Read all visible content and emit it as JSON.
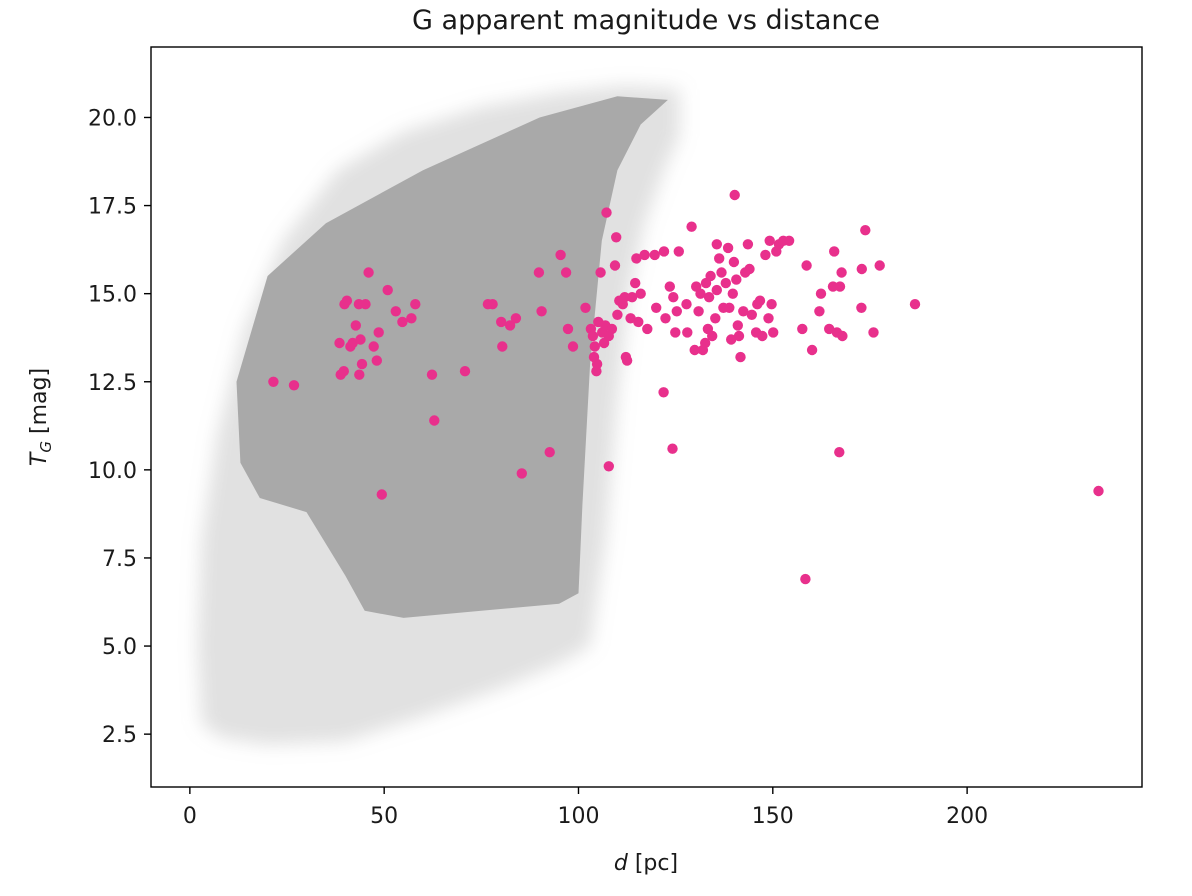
{
  "chart_data": {
    "type": "scatter",
    "title": "G apparent magnitude vs distance",
    "xlabel": {
      "main": "d",
      "unit": " [pc]"
    },
    "ylabel": {
      "main": "T",
      "sub": "G",
      "unit": " [mag]"
    },
    "xlim": [
      -10,
      245
    ],
    "ylim": [
      1.0,
      22.0
    ],
    "xticks": [
      0,
      50,
      100,
      150,
      200
    ],
    "xtick_labels": [
      "0",
      "50",
      "100",
      "150",
      "200"
    ],
    "yticks": [
      2.5,
      5.0,
      7.5,
      10.0,
      12.5,
      15.0,
      17.5,
      20.0
    ],
    "ytick_labels": [
      "2.5",
      "5.0",
      "7.5",
      "10.0",
      "12.5",
      "15.0",
      "17.5",
      "20.0"
    ],
    "grid": false,
    "colors": {
      "background_cloud": "#a9a9a9",
      "highlight": "#e8308c"
    },
    "series": [
      {
        "style": "dense translucent grey background population (bounded region)",
        "outline": [
          [
            3,
            2.8
          ],
          [
            8,
            2.4
          ],
          [
            20,
            2.2
          ],
          [
            40,
            2.3
          ],
          [
            60,
            3.0
          ],
          [
            80,
            3.8
          ],
          [
            95,
            4.5
          ],
          [
            103,
            5.0
          ],
          [
            107,
            8.0
          ],
          [
            110,
            12.0
          ],
          [
            113,
            15.0
          ],
          [
            117,
            17.0
          ],
          [
            122,
            18.5
          ],
          [
            126,
            19.5
          ],
          [
            126,
            20.8
          ],
          [
            112,
            20.9
          ],
          [
            95,
            20.7
          ],
          [
            75,
            20.3
          ],
          [
            55,
            19.6
          ],
          [
            38,
            18.5
          ],
          [
            24,
            16.5
          ],
          [
            14,
            14.0
          ],
          [
            7,
            11.0
          ],
          [
            3,
            8.0
          ],
          [
            2,
            5.0
          ]
        ],
        "core_outline": [
          [
            12,
            12.5
          ],
          [
            13,
            10.2
          ],
          [
            18,
            9.2
          ],
          [
            30,
            8.8
          ],
          [
            40,
            7.0
          ],
          [
            45,
            6.0
          ],
          [
            55,
            5.8
          ],
          [
            75,
            6.0
          ],
          [
            95,
            6.2
          ],
          [
            100,
            6.5
          ],
          [
            101,
            9.0
          ],
          [
            103,
            13.0
          ],
          [
            106,
            16.5
          ],
          [
            110,
            18.5
          ],
          [
            116,
            19.8
          ],
          [
            123,
            20.5
          ],
          [
            110,
            20.6
          ],
          [
            90,
            20.0
          ],
          [
            60,
            18.5
          ],
          [
            35,
            17.0
          ],
          [
            20,
            15.5
          ]
        ]
      },
      {
        "style": "highlighted magenta points",
        "points": [
          [
            21.5,
            12.5
          ],
          [
            26.8,
            12.4
          ],
          [
            38.5,
            13.6
          ],
          [
            38.8,
            12.7
          ],
          [
            39.6,
            12.8
          ],
          [
            39.8,
            14.7
          ],
          [
            40.4,
            14.8
          ],
          [
            41.3,
            13.5
          ],
          [
            41.9,
            13.6
          ],
          [
            42.7,
            14.1
          ],
          [
            43.5,
            14.7
          ],
          [
            43.9,
            13.7
          ],
          [
            43.6,
            12.7
          ],
          [
            44.3,
            13.0
          ],
          [
            45.2,
            14.7
          ],
          [
            46.0,
            15.6
          ],
          [
            47.3,
            13.5
          ],
          [
            48.1,
            13.1
          ],
          [
            48.6,
            13.9
          ],
          [
            49.4,
            9.3
          ],
          [
            50.9,
            15.1
          ],
          [
            53.0,
            14.5
          ],
          [
            54.7,
            14.2
          ],
          [
            57.0,
            14.3
          ],
          [
            58.0,
            14.7
          ],
          [
            62.3,
            12.7
          ],
          [
            62.9,
            11.4
          ],
          [
            70.8,
            12.8
          ],
          [
            76.7,
            14.7
          ],
          [
            77.9,
            14.7
          ],
          [
            80.1,
            14.2
          ],
          [
            80.4,
            13.5
          ],
          [
            82.4,
            14.1
          ],
          [
            83.9,
            14.3
          ],
          [
            85.4,
            9.9
          ],
          [
            89.8,
            15.6
          ],
          [
            90.5,
            14.5
          ],
          [
            92.6,
            10.5
          ],
          [
            95.4,
            16.1
          ],
          [
            96.8,
            15.6
          ],
          [
            97.3,
            14.0
          ],
          [
            98.6,
            13.5
          ],
          [
            101.8,
            14.6
          ],
          [
            103.2,
            14.0
          ],
          [
            103.7,
            13.8
          ],
          [
            104.0,
            13.2
          ],
          [
            104.2,
            13.5
          ],
          [
            104.6,
            12.8
          ],
          [
            104.8,
            13.0
          ],
          [
            105.1,
            14.2
          ],
          [
            105.7,
            15.6
          ],
          [
            106.1,
            13.9
          ],
          [
            106.6,
            13.6
          ],
          [
            106.9,
            14.1
          ],
          [
            107.2,
            17.3
          ],
          [
            107.8,
            13.8
          ],
          [
            107.8,
            10.1
          ],
          [
            108.6,
            14.0
          ],
          [
            109.4,
            15.8
          ],
          [
            109.7,
            16.6
          ],
          [
            110.0,
            14.4
          ],
          [
            110.5,
            14.8
          ],
          [
            111.4,
            14.7
          ],
          [
            111.9,
            14.9
          ],
          [
            112.2,
            13.2
          ],
          [
            112.5,
            13.1
          ],
          [
            113.4,
            14.3
          ],
          [
            113.8,
            14.9
          ],
          [
            114.6,
            15.3
          ],
          [
            114.9,
            16.0
          ],
          [
            115.4,
            14.2
          ],
          [
            116.0,
            15.0
          ],
          [
            117.0,
            16.1
          ],
          [
            117.7,
            14.0
          ],
          [
            119.6,
            16.1
          ],
          [
            120.0,
            14.6
          ],
          [
            121.9,
            12.2
          ],
          [
            122.0,
            16.2
          ],
          [
            122.4,
            14.3
          ],
          [
            123.5,
            15.2
          ],
          [
            124.2,
            10.6
          ],
          [
            124.4,
            14.9
          ],
          [
            124.9,
            13.9
          ],
          [
            125.3,
            14.5
          ],
          [
            125.8,
            16.2
          ],
          [
            127.8,
            14.7
          ],
          [
            128.0,
            13.9
          ],
          [
            129.1,
            16.9
          ],
          [
            129.9,
            13.4
          ],
          [
            130.3,
            15.2
          ],
          [
            130.9,
            14.5
          ],
          [
            131.4,
            15.0
          ],
          [
            132.0,
            13.4
          ],
          [
            132.6,
            13.6
          ],
          [
            132.8,
            15.3
          ],
          [
            133.3,
            14.0
          ],
          [
            133.6,
            14.9
          ],
          [
            134.0,
            15.5
          ],
          [
            134.4,
            13.8
          ],
          [
            135.2,
            14.3
          ],
          [
            135.6,
            15.1
          ],
          [
            135.6,
            16.4
          ],
          [
            136.2,
            16.0
          ],
          [
            136.8,
            15.6
          ],
          [
            137.3,
            14.6
          ],
          [
            137.9,
            15.3
          ],
          [
            138.5,
            16.3
          ],
          [
            138.8,
            14.6
          ],
          [
            139.3,
            13.7
          ],
          [
            139.7,
            15.0
          ],
          [
            140.0,
            15.9
          ],
          [
            140.2,
            17.8
          ],
          [
            140.6,
            15.4
          ],
          [
            141.0,
            14.1
          ],
          [
            141.3,
            13.8
          ],
          [
            141.7,
            13.2
          ],
          [
            142.4,
            14.5
          ],
          [
            142.9,
            15.6
          ],
          [
            143.6,
            16.4
          ],
          [
            144.0,
            15.7
          ],
          [
            144.6,
            14.4
          ],
          [
            145.7,
            13.9
          ],
          [
            146.0,
            14.7
          ],
          [
            146.7,
            14.8
          ],
          [
            147.3,
            13.8
          ],
          [
            148.1,
            16.1
          ],
          [
            148.9,
            14.3
          ],
          [
            149.2,
            16.5
          ],
          [
            149.7,
            14.7
          ],
          [
            150.1,
            13.9
          ],
          [
            150.9,
            16.2
          ],
          [
            151.6,
            16.4
          ],
          [
            152.7,
            16.5
          ],
          [
            154.2,
            16.5
          ],
          [
            157.6,
            14.0
          ],
          [
            158.4,
            6.9
          ],
          [
            158.7,
            15.8
          ],
          [
            160.1,
            13.4
          ],
          [
            162.0,
            14.5
          ],
          [
            162.4,
            15.0
          ],
          [
            164.5,
            14.0
          ],
          [
            165.5,
            15.2
          ],
          [
            165.8,
            16.2
          ],
          [
            166.5,
            13.9
          ],
          [
            167.1,
            10.5
          ],
          [
            167.3,
            15.2
          ],
          [
            167.7,
            15.6
          ],
          [
            167.9,
            13.8
          ],
          [
            172.8,
            14.6
          ],
          [
            172.9,
            15.7
          ],
          [
            173.8,
            16.8
          ],
          [
            175.9,
            13.9
          ],
          [
            177.5,
            15.8
          ],
          [
            186.6,
            14.7
          ],
          [
            233.8,
            9.4
          ]
        ]
      }
    ]
  }
}
